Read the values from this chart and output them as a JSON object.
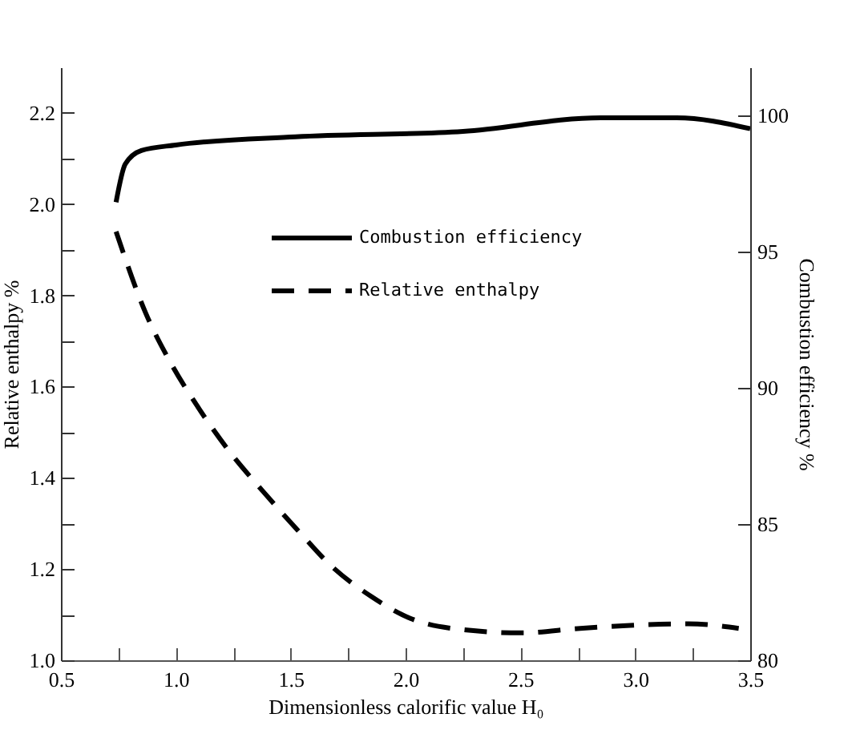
{
  "chart_data": {
    "type": "line",
    "xlabel": "Dimensionless calorific value H₀",
    "ylabel": "Relative enthalpy %",
    "y2label": "Combustion efficiency %",
    "xlim": [
      0.5,
      3.5
    ],
    "xticks": [
      {
        "value": 0.5,
        "label": "0.5"
      },
      {
        "value": 0.75,
        "label": null
      },
      {
        "value": 1,
        "label": "1.0"
      },
      {
        "value": 1.25,
        "label": null
      },
      {
        "value": 1.5,
        "label": "1.5"
      },
      {
        "value": 1.75,
        "label": null
      },
      {
        "value": 2,
        "label": "2.0"
      },
      {
        "value": 2.25,
        "label": null
      },
      {
        "value": 2.5,
        "label": "2.5"
      },
      {
        "value": 2.75,
        "label": null
      },
      {
        "value": 3,
        "label": "3.0"
      },
      {
        "value": 3.25,
        "label": null
      },
      {
        "value": 3.5,
        "label": "3.5"
      }
    ],
    "ylim": [
      1.0,
      2.3
    ],
    "yticks": [
      {
        "value": 1,
        "label": "1.0"
      },
      {
        "value": 1.1,
        "label": null
      },
      {
        "value": 1.2,
        "label": "1.2"
      },
      {
        "value": 1.3,
        "label": null
      },
      {
        "value": 1.4,
        "label": "1.4"
      },
      {
        "value": 1.5,
        "label": null
      },
      {
        "value": 1.6,
        "label": "1.6"
      },
      {
        "value": 1.7,
        "label": null
      },
      {
        "value": 1.8,
        "label": "1.8"
      },
      {
        "value": 1.9,
        "label": null
      },
      {
        "value": 2,
        "label": "2.0"
      },
      {
        "value": 2.1,
        "label": null
      },
      {
        "value": 2.2,
        "label": "2.2"
      }
    ],
    "y2lim": [
      80,
      101.75
    ],
    "y2ticks": [
      80,
      85,
      90,
      95,
      100
    ],
    "legend": "top",
    "grid": false,
    "series": [
      {
        "name": "Combustion efficiency",
        "color": "#000000",
        "line_style": "solid",
        "axis": "y2",
        "x": [
          0.74,
          0.78,
          0.85,
          1.0,
          1.52,
          2.25,
          2.85,
          3.18,
          3.5
        ],
        "values": [
          96.8,
          98.2,
          98.7,
          98.9,
          99.2,
          99.4,
          99.9,
          99.9,
          99.5
        ]
      },
      {
        "name": "Relative enthalpy",
        "color": "#000000",
        "line_style": "dashed",
        "x": [
          0.74,
          0.87,
          0.98,
          1.09,
          1.23,
          1.38,
          1.54,
          1.67,
          1.85,
          2.03,
          2.2,
          2.5,
          2.76,
          3.23,
          3.45
        ],
        "values": [
          1.94,
          1.76,
          1.65,
          1.56,
          1.46,
          1.37,
          1.28,
          1.21,
          1.14,
          1.09,
          1.07,
          1.06,
          1.07,
          1.08,
          1.07
        ]
      }
    ]
  }
}
